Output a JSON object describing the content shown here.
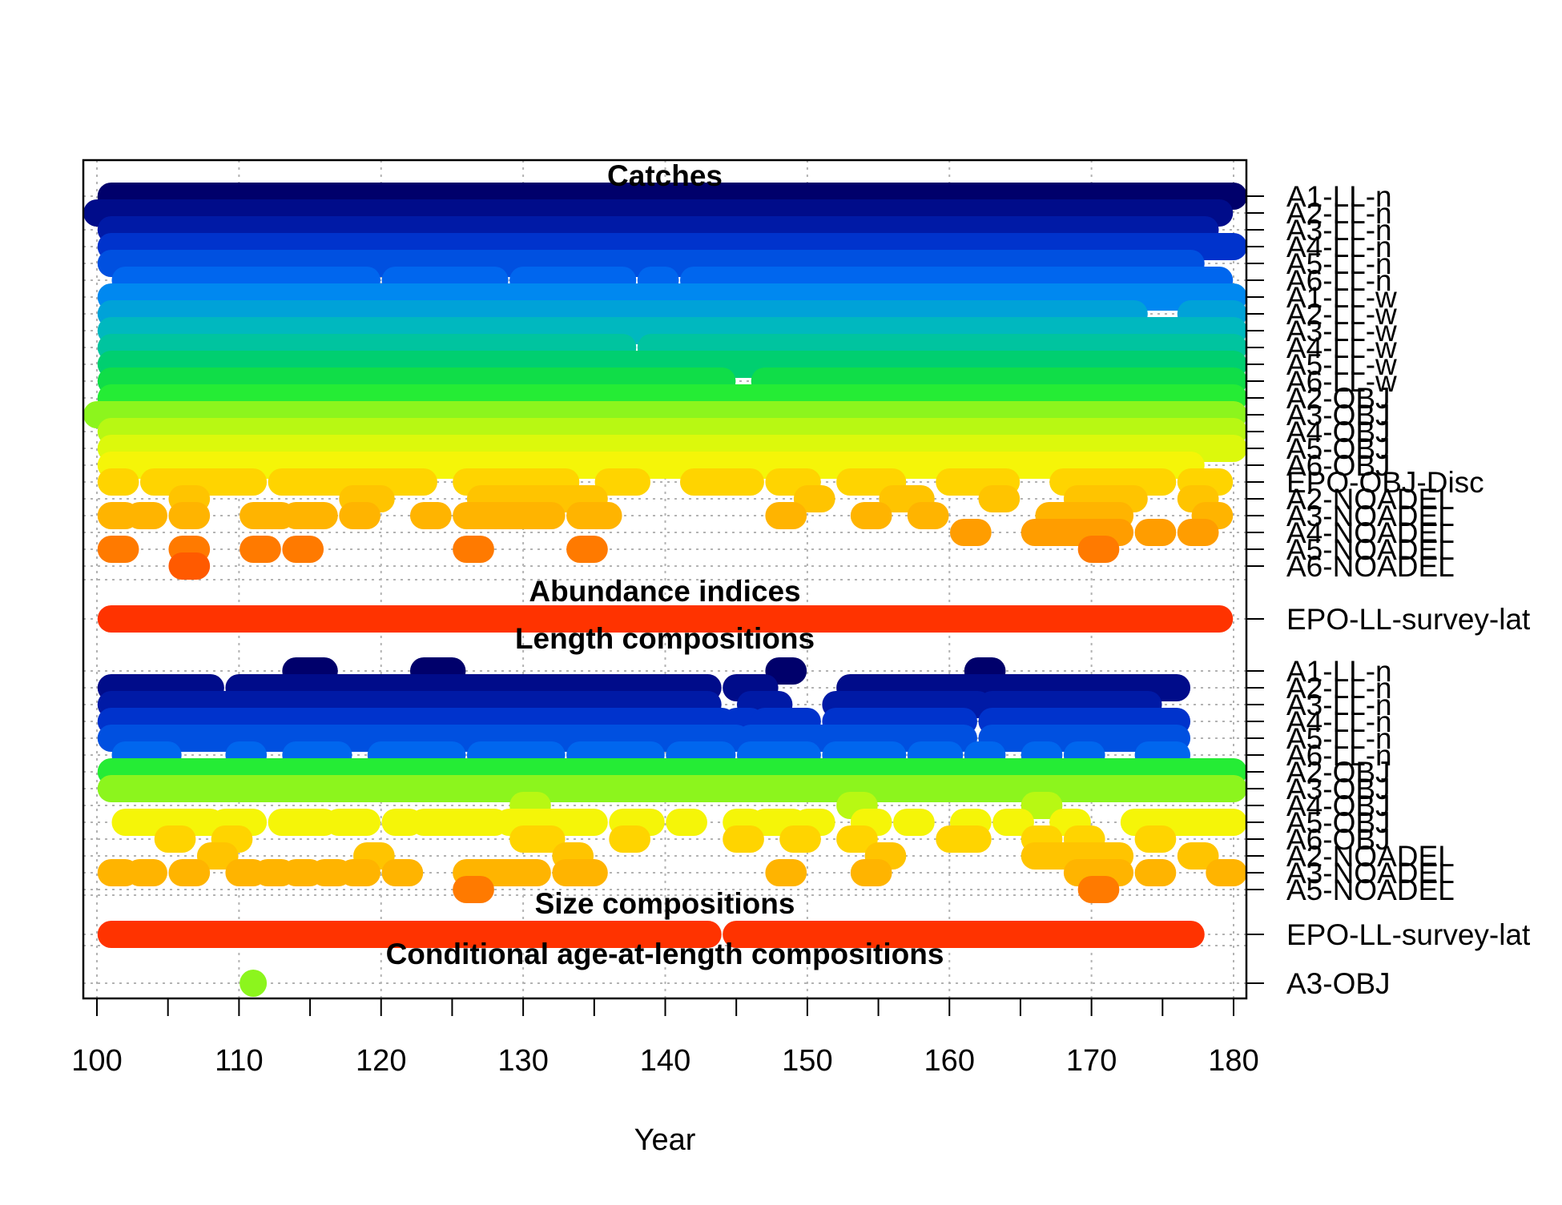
{
  "chart_data": {
    "type": "scatter",
    "xlabel": "Year",
    "xlim": [
      99,
      181
    ],
    "x_ticks": [
      100,
      110,
      120,
      130,
      140,
      150,
      160,
      170,
      180
    ],
    "x_tick_labels": [
      "100",
      "110",
      "120",
      "130",
      "140",
      "150",
      "160",
      "170",
      "180"
    ],
    "grid": true,
    "sections": [
      {
        "title": "Catches",
        "rows": [
          {
            "label": "A1-LL-n",
            "color": "#00006b",
            "segments": [
              [
                101,
                180
              ]
            ]
          },
          {
            "label": "A2-LL-n",
            "color": "#000c8a",
            "segments": [
              [
                100,
                179
              ]
            ]
          },
          {
            "label": "A3-LL-n",
            "color": "#001aa6",
            "segments": [
              [
                101,
                178
              ]
            ]
          },
          {
            "label": "A4-LL-n",
            "color": "#0033cc",
            "segments": [
              [
                101,
                180
              ]
            ]
          },
          {
            "label": "A5-LL-n",
            "color": "#0050e0",
            "segments": [
              [
                101,
                177
              ]
            ]
          },
          {
            "label": "A6-LL-n",
            "color": "#0066ee",
            "segments": [
              [
                102,
                119
              ],
              [
                121,
                128
              ],
              [
                130,
                137
              ],
              [
                139,
                140
              ],
              [
                142,
                179
              ]
            ]
          },
          {
            "label": "A1-LL-w",
            "color": "#0088f0",
            "segments": [
              [
                101,
                180
              ]
            ]
          },
          {
            "label": "A2-LL-w",
            "color": "#00a2d8",
            "segments": [
              [
                101,
                173
              ],
              [
                177,
                180
              ]
            ]
          },
          {
            "label": "A3-LL-w",
            "color": "#00b8bf",
            "segments": [
              [
                101,
                180
              ]
            ]
          },
          {
            "label": "A4-LL-w",
            "color": "#00c49f",
            "segments": [
              [
                101,
                137
              ],
              [
                139,
                180
              ]
            ]
          },
          {
            "label": "A5-LL-w",
            "color": "#00cf70",
            "segments": [
              [
                101,
                180
              ]
            ]
          },
          {
            "label": "A6-LL-w",
            "color": "#10dd48",
            "segments": [
              [
                101,
                144
              ],
              [
                147,
                180
              ]
            ]
          },
          {
            "label": "A2-OBJ",
            "color": "#25ec35",
            "segments": [
              [
                101,
                180
              ]
            ]
          },
          {
            "label": "A3-OBJ",
            "color": "#8cf51d",
            "segments": [
              [
                100,
                180
              ]
            ]
          },
          {
            "label": "A4-OBJ",
            "color": "#b8f813",
            "segments": [
              [
                101,
                180
              ]
            ]
          },
          {
            "label": "A5-OBJ",
            "color": "#dcf90c",
            "segments": [
              [
                101,
                180
              ]
            ]
          },
          {
            "label": "A6-OBJ",
            "color": "#f5f508",
            "segments": [
              [
                101,
                177
              ]
            ]
          },
          {
            "label": "EPO-OBJ-Disc",
            "color": "#ffd400",
            "segments": [
              [
                101,
                102
              ],
              [
                104,
                111
              ],
              [
                113,
                123
              ],
              [
                126,
                133
              ],
              [
                136,
                138
              ],
              [
                142,
                146
              ],
              [
                148,
                150
              ],
              [
                153,
                156
              ],
              [
                160,
                164
              ],
              [
                168,
                175
              ],
              [
                177,
                179
              ]
            ]
          },
          {
            "label": "A2-NOADEL",
            "color": "#ffc400",
            "segments": [
              [
                106,
                107
              ],
              [
                118,
                120
              ],
              [
                127,
                135
              ],
              [
                150,
                151
              ],
              [
                156,
                158
              ],
              [
                163,
                164
              ],
              [
                169,
                173
              ],
              [
                177,
                178
              ]
            ]
          },
          {
            "label": "A3-NOADEL",
            "color": "#ffb400",
            "segments": [
              [
                101,
                102
              ],
              [
                103,
                104
              ],
              [
                106,
                107
              ],
              [
                111,
                113
              ],
              [
                114,
                116
              ],
              [
                118,
                119
              ],
              [
                123,
                124
              ],
              [
                126,
                132
              ],
              [
                134,
                136
              ],
              [
                148,
                149
              ],
              [
                154,
                155
              ],
              [
                158,
                159
              ],
              [
                167,
                172
              ],
              [
                178,
                179
              ]
            ]
          },
          {
            "label": "A4-NOADEL",
            "color": "#ff9d00",
            "segments": [
              [
                161,
                162
              ],
              [
                166,
                172
              ],
              [
                174,
                175
              ],
              [
                177,
                178
              ]
            ]
          },
          {
            "label": "A5-NOADEL",
            "color": "#ff7a00",
            "segments": [
              [
                101,
                102
              ],
              [
                106,
                107
              ],
              [
                111,
                112
              ],
              [
                114,
                115
              ],
              [
                126,
                127
              ],
              [
                134,
                135
              ],
              [
                170,
                171
              ]
            ]
          },
          {
            "label": "A6-NOADEL",
            "color": "#ff5a00",
            "segments": [
              [
                106,
                107
              ]
            ]
          }
        ]
      },
      {
        "title": "Abundance indices",
        "rows": [
          {
            "label": "EPO-LL-survey-lat",
            "color": "#ff3300",
            "segments": [
              [
                101,
                179
              ]
            ]
          }
        ]
      },
      {
        "title": "Length compositions",
        "rows": [
          {
            "label": "A1-LL-n",
            "color": "#00006b",
            "segments": [
              [
                114,
                116
              ],
              [
                123,
                125
              ],
              [
                148,
                149
              ],
              [
                162,
                163
              ]
            ]
          },
          {
            "label": "A2-LL-n",
            "color": "#000c8a",
            "segments": [
              [
                101,
                108
              ],
              [
                110,
                143
              ],
              [
                145,
                147
              ],
              [
                153,
                176
              ]
            ]
          },
          {
            "label": "A3-LL-n",
            "color": "#001aa6",
            "segments": [
              [
                101,
                143
              ],
              [
                146,
                148
              ],
              [
                152,
                162
              ],
              [
                163,
                174
              ]
            ]
          },
          {
            "label": "A4-LL-n",
            "color": "#0033cc",
            "segments": [
              [
                101,
                144
              ],
              [
                145,
                146
              ],
              [
                147,
                150
              ],
              [
                152,
                161
              ],
              [
                163,
                176
              ]
            ]
          },
          {
            "label": "A5-LL-n",
            "color": "#0050e0",
            "segments": [
              [
                101,
                145
              ],
              [
                146,
                161
              ],
              [
                163,
                176
              ]
            ]
          },
          {
            "label": "A6-LL-n",
            "color": "#0066ee",
            "segments": [
              [
                102,
                105
              ],
              [
                110,
                111
              ],
              [
                114,
                117
              ],
              [
                120,
                125
              ],
              [
                127,
                132
              ],
              [
                134,
                139
              ],
              [
                141,
                144
              ],
              [
                146,
                150
              ],
              [
                152,
                156
              ],
              [
                158,
                160
              ],
              [
                162,
                163
              ],
              [
                166,
                167
              ],
              [
                169,
                170
              ],
              [
                174,
                176
              ]
            ]
          },
          {
            "label": "A2-OBJ",
            "color": "#25ec35",
            "segments": [
              [
                101,
                180
              ]
            ]
          },
          {
            "label": "A3-OBJ",
            "color": "#8cf51d",
            "segments": [
              [
                101,
                180
              ]
            ]
          },
          {
            "label": "A4-OBJ",
            "color": "#b8f813",
            "segments": [
              [
                130,
                131
              ],
              [
                153,
                154
              ],
              [
                166,
                167
              ]
            ]
          },
          {
            "label": "A5-OBJ",
            "color": "#f5f508",
            "segments": [
              [
                102,
                108
              ],
              [
                109,
                111
              ],
              [
                113,
                116
              ],
              [
                117,
                119
              ],
              [
                121,
                122
              ],
              [
                123,
                128
              ],
              [
                129,
                135
              ],
              [
                137,
                139
              ],
              [
                141,
                142
              ],
              [
                145,
                146
              ],
              [
                147,
                149
              ],
              [
                150,
                151
              ],
              [
                154,
                155
              ],
              [
                157,
                158
              ],
              [
                161,
                162
              ],
              [
                164,
                165
              ],
              [
                168,
                169
              ],
              [
                173,
                180
              ]
            ]
          },
          {
            "label": "A6-OBJ",
            "color": "#ffd400",
            "segments": [
              [
                105,
                106
              ],
              [
                109,
                110
              ],
              [
                130,
                132
              ],
              [
                137,
                138
              ],
              [
                145,
                146
              ],
              [
                149,
                150
              ],
              [
                153,
                154
              ],
              [
                160,
                162
              ],
              [
                166,
                167
              ],
              [
                169,
                170
              ],
              [
                174,
                175
              ]
            ]
          },
          {
            "label": "A2-NOADEL",
            "color": "#ffc400",
            "segments": [
              [
                108,
                109
              ],
              [
                119,
                120
              ],
              [
                133,
                134
              ],
              [
                155,
                156
              ],
              [
                166,
                172
              ],
              [
                177,
                178
              ]
            ]
          },
          {
            "label": "A3-NOADEL",
            "color": "#ffb400",
            "segments": [
              [
                101,
                102
              ],
              [
                103,
                104
              ],
              [
                106,
                107
              ],
              [
                110,
                111
              ],
              [
                112,
                113
              ],
              [
                114,
                115
              ],
              [
                116,
                117
              ],
              [
                118,
                119
              ],
              [
                121,
                122
              ],
              [
                126,
                131
              ],
              [
                133,
                135
              ],
              [
                148,
                149
              ],
              [
                154,
                155
              ],
              [
                169,
                172
              ],
              [
                174,
                175
              ],
              [
                179,
                180
              ]
            ]
          },
          {
            "label": "A5-NOADEL",
            "color": "#ff7a00",
            "segments": [
              [
                126,
                127
              ],
              [
                170,
                171
              ]
            ]
          }
        ]
      },
      {
        "title": "Size compositions",
        "rows": [
          {
            "label": "EPO-LL-survey-lat",
            "color": "#ff3300",
            "segments": [
              [
                101,
                143
              ],
              [
                145,
                177
              ]
            ]
          }
        ]
      },
      {
        "title": "Conditional age-at-length compositions",
        "rows": [
          {
            "label": "A3-OBJ",
            "color": "#8cf51d",
            "segments": [
              [
                111,
                111
              ]
            ]
          }
        ]
      }
    ]
  }
}
